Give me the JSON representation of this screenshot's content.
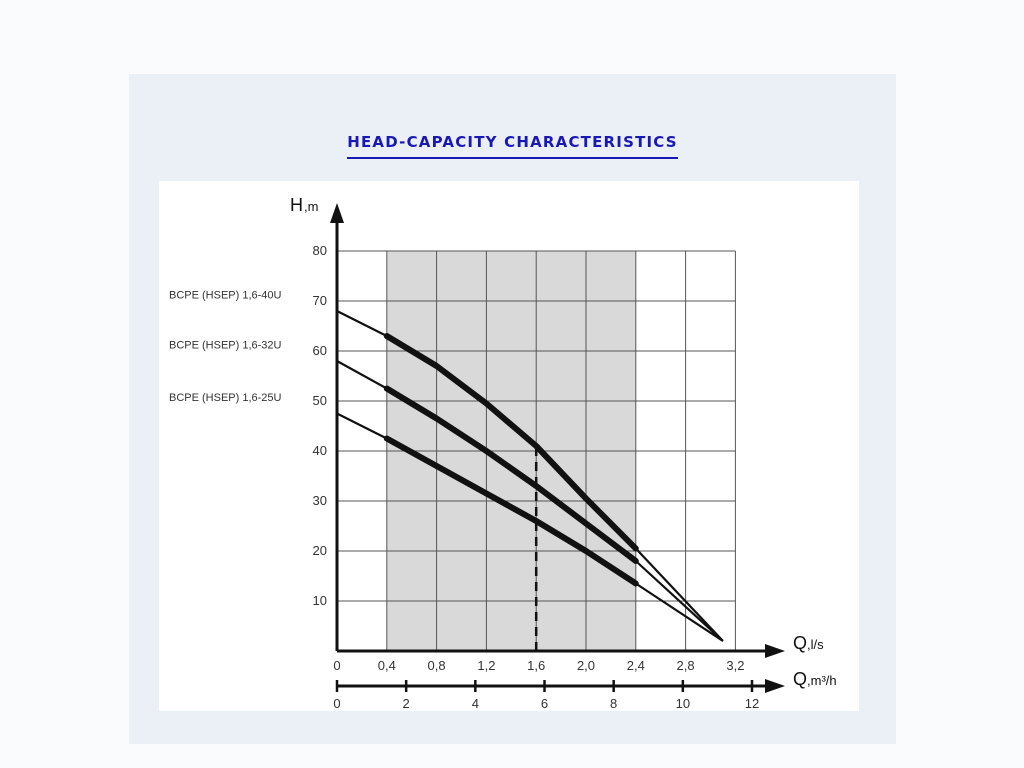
{
  "heading": "HEAD-CAPACITY CHARACTERISTICS",
  "chart_data": {
    "type": "line",
    "y_axis": {
      "symbol": "H",
      "unit": ",m",
      "ticks": [
        10,
        20,
        30,
        40,
        50,
        60,
        70,
        80
      ],
      "range": [
        0,
        80
      ]
    },
    "x_axis": {
      "symbol": "Q",
      "unit": ",l/s",
      "ticks": [
        0,
        0.4,
        0.8,
        1.2,
        1.6,
        2.0,
        2.4,
        2.8,
        3.2
      ],
      "tick_labels": [
        "0",
        "0,4",
        "0,8",
        "1,2",
        "1,6",
        "2,0",
        "2,4",
        "2,8",
        "3,2"
      ],
      "range": [
        0,
        3.2
      ]
    },
    "x2_axis": {
      "symbol": "Q",
      "unit": ",m³/h",
      "ticks": [
        0,
        2,
        4,
        6,
        8,
        10,
        12
      ],
      "tick_labels": [
        "0",
        "2",
        "4",
        "6",
        "8",
        "10",
        "12"
      ]
    },
    "working_range": [
      0.4,
      2.4
    ],
    "nominal_flow": 1.6,
    "grid": true,
    "series": [
      {
        "name": "BCPE (HSEP) 1,6-40U",
        "x": [
          0,
          0.4,
          0.8,
          1.2,
          1.6,
          2.0,
          2.4,
          3.1
        ],
        "y": [
          68,
          63,
          57,
          49.5,
          41,
          30.5,
          20.5,
          2
        ]
      },
      {
        "name": "BCPE (HSEP) 1,6-32U",
        "x": [
          0,
          0.4,
          0.8,
          1.2,
          1.6,
          2.0,
          2.4,
          3.1
        ],
        "y": [
          58,
          52.5,
          46.5,
          40,
          33,
          25.5,
          18,
          2
        ]
      },
      {
        "name": "BCPE (HSEP) 1,6-25U",
        "x": [
          0,
          0.4,
          0.8,
          1.2,
          1.6,
          2.0,
          2.4,
          3.1
        ],
        "y": [
          47.5,
          42.5,
          37,
          31.5,
          26,
          20,
          13.5,
          2
        ]
      }
    ]
  }
}
